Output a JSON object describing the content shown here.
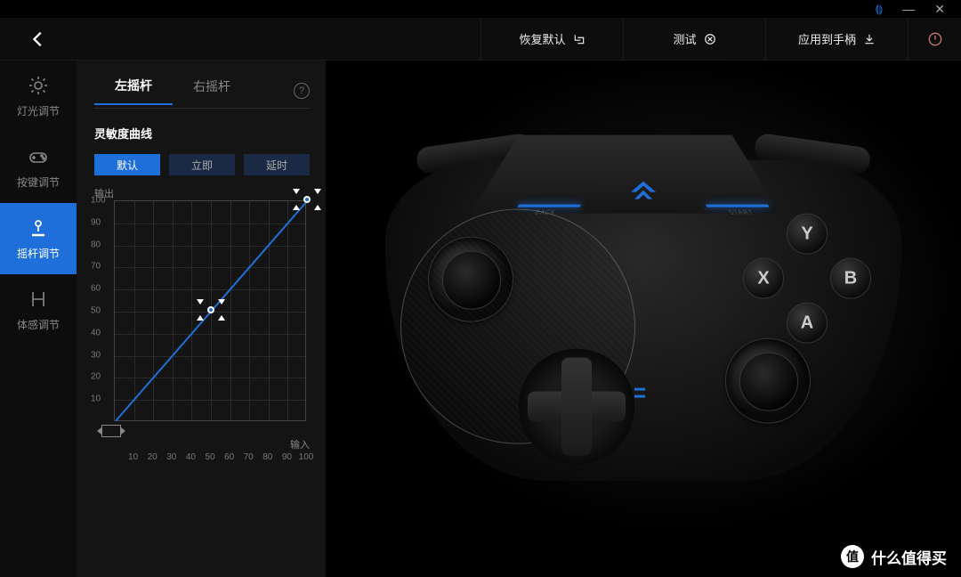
{
  "titlebar": {
    "extra_icon_color": "#1e6fd9"
  },
  "topbar": {
    "restore": "恢复默认",
    "test": "测试",
    "apply": "应用到手柄"
  },
  "sidenav": {
    "items": [
      {
        "key": "light",
        "label": "灯光调节"
      },
      {
        "key": "button",
        "label": "按键调节"
      },
      {
        "key": "stick",
        "label": "摇杆调节"
      },
      {
        "key": "motion",
        "label": "体感调节"
      }
    ],
    "active_index": 2
  },
  "stick_tabs": {
    "left": "左摇杆",
    "right": "右摇杆",
    "active": "left"
  },
  "curve": {
    "section_title": "灵敏度曲线",
    "modes": [
      "默认",
      "立即",
      "延时"
    ],
    "active_mode_index": 0,
    "x_label": "输入",
    "y_label": "输出",
    "type": "line",
    "xlim": [
      0,
      100
    ],
    "ylim": [
      0,
      100
    ],
    "xtick_step": 10,
    "ytick_step": 10,
    "grid_color": "#2a2a2a",
    "axis_color": "#444444",
    "line_color": "#1e6fd9",
    "point_border": "#ffffff",
    "point_fill": "#1e6fd9",
    "background_color": "#141414",
    "label_color": "#888888",
    "tick_color": "#777777",
    "line_width": 2,
    "points": [
      {
        "x": 0,
        "y": 0
      },
      {
        "x": 50,
        "y": 50
      },
      {
        "x": 100,
        "y": 100
      }
    ]
  },
  "controller": {
    "accent_color": "#1e6fd9",
    "body_color": "#1a1a1a",
    "face_buttons": {
      "top": "Y",
      "left": "X",
      "right": "B",
      "bottom": "A"
    },
    "wing_labels": {
      "left": "BACK",
      "right": "START"
    },
    "active_stick": "left"
  },
  "watermark": {
    "badge": "值",
    "text": "什么值得买"
  }
}
